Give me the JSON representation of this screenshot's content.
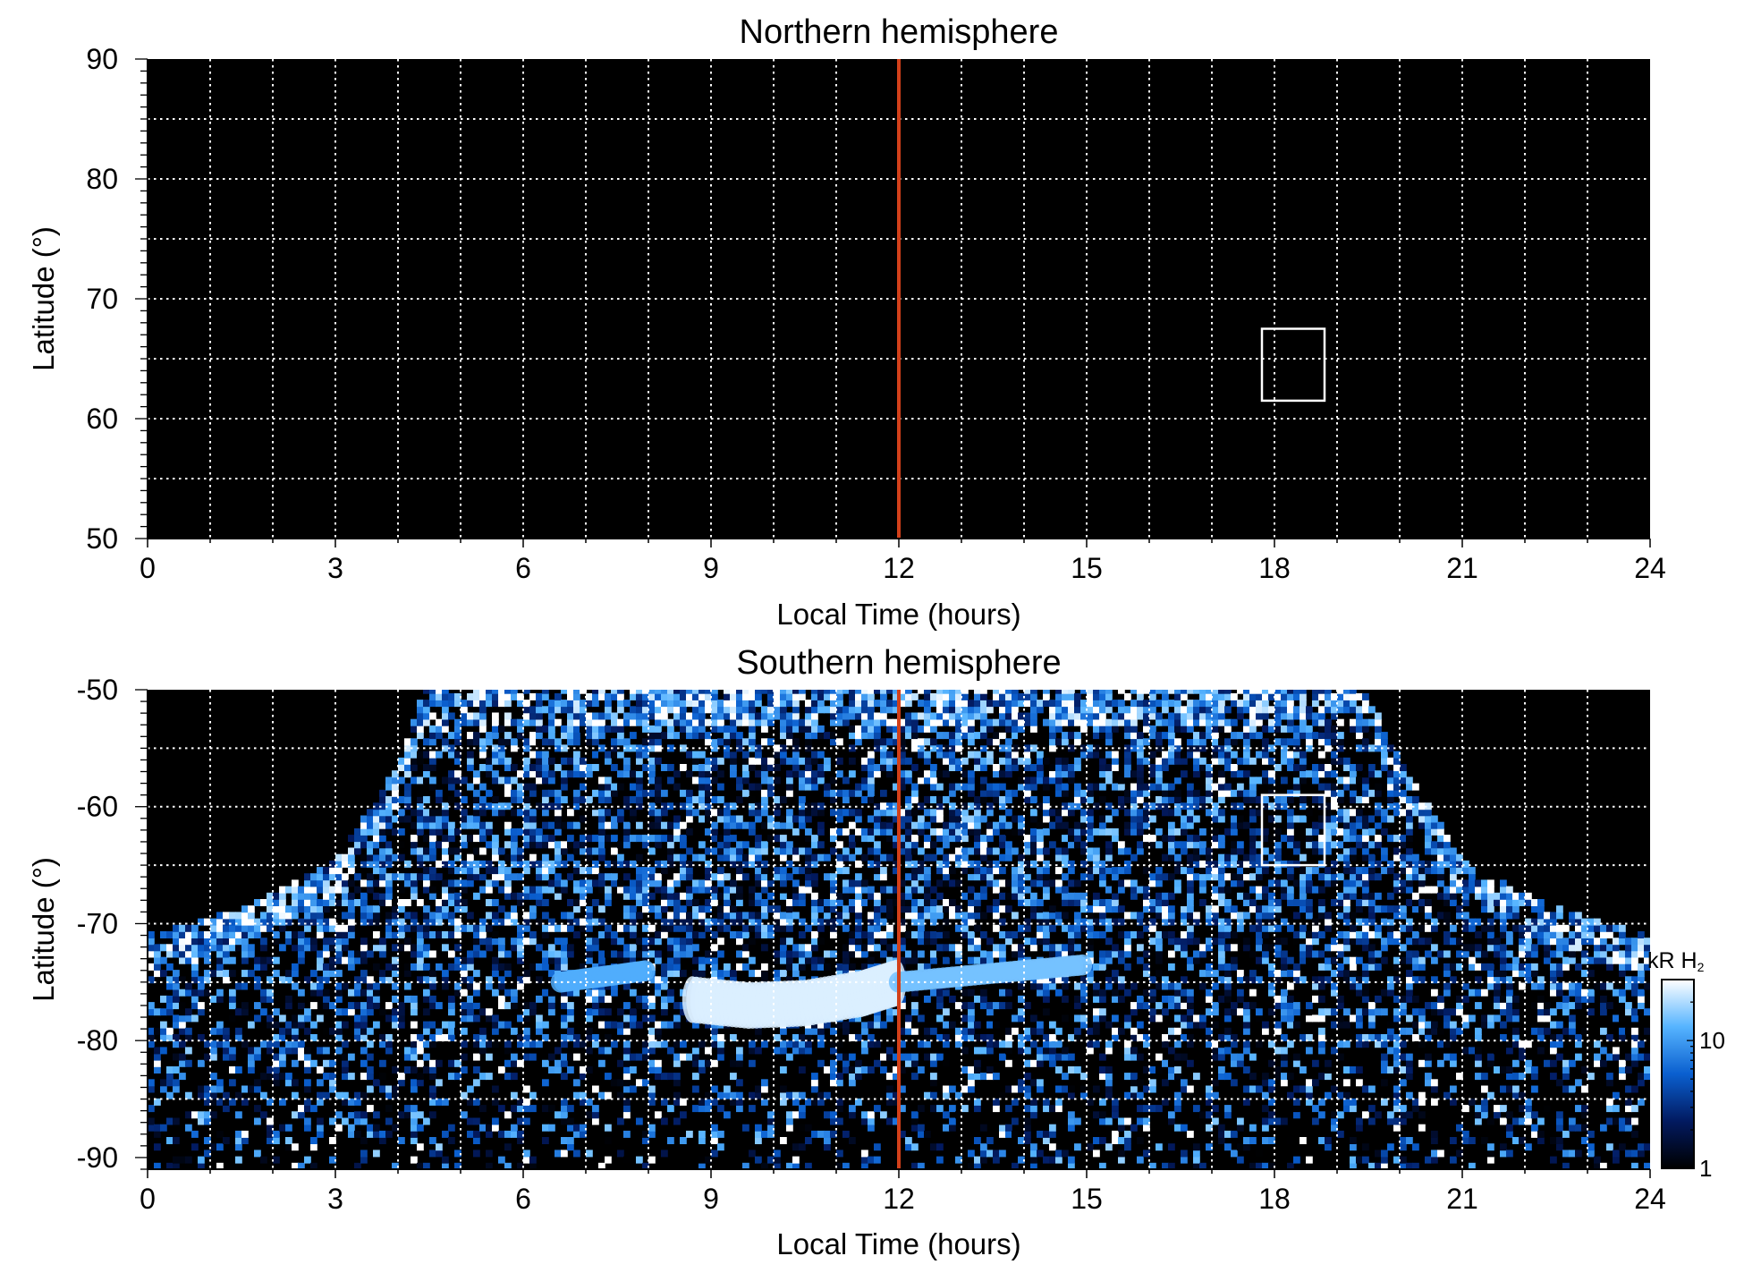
{
  "chart_data": [
    {
      "type": "heatmap",
      "title": "Northern hemisphere",
      "xlabel": "Local Time (hours)",
      "ylabel": "Latitude (°)",
      "xlim": [
        0,
        24
      ],
      "ylim": [
        50,
        90
      ],
      "xticks": [
        0,
        3,
        6,
        9,
        12,
        15,
        18,
        21,
        24
      ],
      "xtick_labels": [
        "0",
        "3",
        "6",
        "9",
        "12",
        "15",
        "18",
        "21",
        "24"
      ],
      "yticks": [
        50,
        60,
        70,
        80,
        90
      ],
      "ytick_labels": [
        "50",
        "60",
        "70",
        "80",
        "90"
      ],
      "grid": true,
      "x_gridlines": [
        1,
        2,
        3,
        4,
        5,
        6,
        7,
        8,
        9,
        10,
        11,
        12,
        13,
        14,
        15,
        16,
        17,
        18,
        19,
        20,
        21,
        22,
        23
      ],
      "y_gridlines": [
        55,
        60,
        65,
        70,
        75,
        80,
        85
      ],
      "noon_line": {
        "x": 12,
        "color": "#d2401a"
      },
      "box": {
        "x": [
          17.8,
          18.8
        ],
        "y": [
          61.5,
          67.5
        ]
      },
      "background": "#000000",
      "emission": "none"
    },
    {
      "type": "heatmap",
      "title": "Southern hemisphere",
      "xlabel": "Local Time (hours)",
      "ylabel": "Latitude (°)",
      "xlim": [
        0,
        24
      ],
      "ylim": [
        -91,
        -50
      ],
      "xticks": [
        0,
        3,
        6,
        9,
        12,
        15,
        18,
        21,
        24
      ],
      "xtick_labels": [
        "0",
        "3",
        "6",
        "9",
        "12",
        "15",
        "18",
        "21",
        "24"
      ],
      "yticks": [
        -90,
        -80,
        -70,
        -60,
        -50
      ],
      "ytick_labels": [
        "-90",
        "-80",
        "-70",
        "-60",
        "-50"
      ],
      "grid": true,
      "x_gridlines": [
        1,
        2,
        3,
        4,
        5,
        6,
        7,
        8,
        9,
        10,
        11,
        12,
        13,
        14,
        15,
        16,
        17,
        18,
        19,
        20,
        21,
        22,
        23
      ],
      "y_gridlines": [
        -85,
        -80,
        -75,
        -70,
        -65,
        -60,
        -55
      ],
      "noon_line": {
        "x": 12,
        "color": "#d2401a"
      },
      "box": {
        "x": [
          17.8,
          18.8
        ],
        "y": [
          -65,
          -59
        ]
      },
      "background": "#000000",
      "coverage_edge": {
        "lt": [
          0,
          1,
          2,
          3,
          4,
          4.4,
          19.5,
          20,
          21,
          22,
          23,
          24
        ],
        "lat": [
          -71,
          -69.5,
          -67.5,
          -64.5,
          -56.5,
          -50,
          -50,
          -56,
          -64.5,
          -67.5,
          -69.5,
          -71
        ]
      },
      "auroral_oval": [
        {
          "lt": [
            6.6,
            7.3,
            8.0
          ],
          "lat": [
            -75.0,
            -74.5,
            -74.0
          ],
          "intensity": 12
        },
        {
          "lt": [
            8.7,
            9.6,
            10.5,
            11.4,
            12.0
          ],
          "lat": [
            -76.5,
            -77.0,
            -76.8,
            -76.0,
            -75.0
          ],
          "intensity": 25
        },
        {
          "lt": [
            12.0,
            13.0,
            14.0,
            15.0
          ],
          "lat": [
            -75.0,
            -74.5,
            -74.0,
            -73.5
          ],
          "intensity": 15
        }
      ]
    }
  ],
  "colorbar": {
    "label_main": "kR H",
    "label_sub": "2",
    "scale": "log",
    "range": [
      1,
      30
    ],
    "ticks": [
      1,
      10
    ],
    "tick_labels": [
      "1",
      "10"
    ],
    "colors": [
      "#000000",
      "#021a60",
      "#0a5fcf",
      "#56b4ff",
      "#ffffff"
    ]
  }
}
